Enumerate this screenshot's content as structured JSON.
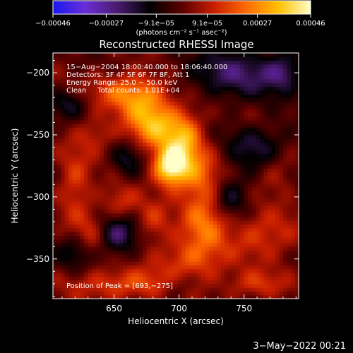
{
  "chart_data": {
    "type": "heatmap",
    "title": "Reconstructed RHESSI Image",
    "xlabel": "Heliocentric X (arcsec)",
    "ylabel": "Heliocentric Y (arcsec)",
    "xlim": [
      603,
      792
    ],
    "ylim": [
      -382,
      -184
    ],
    "x_ticks": [
      650,
      700,
      750
    ],
    "x_tick_labels": [
      "650",
      "700",
      "750"
    ],
    "y_ticks": [
      -200,
      -250,
      -300,
      -350
    ],
    "y_tick_labels": [
      "−200",
      "−250",
      "−300",
      "−350"
    ],
    "colorbar": {
      "range": [
        -0.00046,
        0.00046
      ],
      "ticks": [
        -0.00046,
        -0.00027,
        -9.1e-05,
        9.1e-05,
        0.00027,
        0.00046
      ],
      "tick_labels": [
        "−0.00046",
        "−0.00027",
        "−9.1e−05",
        "9.1e−05",
        "0.00027",
        "0.00046"
      ],
      "units_label": "(photons cm⁻² s⁻¹ asec⁻²)",
      "colors": [
        "#1818f0",
        "#6a2fd6",
        "#4a1a70",
        "#000000",
        "#5a0000",
        "#c81e00",
        "#ff6a00",
        "#ffc000",
        "#ffffc8"
      ]
    },
    "annotations": [
      "15−Aug−2004 18:00:40.000 to 18:06:40.000",
      "Detectors: 3F 4F 5F 6F 7F 8F, Att 1",
      "Energy Range: 25.0 − 50.0 keV",
      "Clean     Total counts: 1.01E+04",
      "Position of Peak = [693,−275]"
    ],
    "peak": {
      "x": 693,
      "y": -275
    },
    "blobs": [
      {
        "x": 693,
        "y": -275,
        "sx": 9,
        "sy": 11,
        "a": 1.0
      },
      {
        "x": 685,
        "y": -245,
        "sx": 16,
        "sy": 12,
        "a": 0.55
      },
      {
        "x": 675,
        "y": -225,
        "sx": 14,
        "sy": 14,
        "a": 0.5
      },
      {
        "x": 655,
        "y": -215,
        "sx": 16,
        "sy": 10,
        "a": 0.4
      },
      {
        "x": 705,
        "y": -255,
        "sx": 9,
        "sy": 16,
        "a": 0.45
      },
      {
        "x": 715,
        "y": -285,
        "sx": 12,
        "sy": 18,
        "a": 0.45
      },
      {
        "x": 720,
        "y": -320,
        "sx": 12,
        "sy": 14,
        "a": 0.42
      },
      {
        "x": 710,
        "y": -350,
        "sx": 18,
        "sy": 13,
        "a": 0.42
      },
      {
        "x": 660,
        "y": -370,
        "sx": 30,
        "sy": 9,
        "a": 0.38
      },
      {
        "x": 620,
        "y": -290,
        "sx": 9,
        "sy": 22,
        "a": 0.32
      },
      {
        "x": 635,
        "y": -330,
        "sx": 10,
        "sy": 14,
        "a": 0.35
      },
      {
        "x": 655,
        "y": -305,
        "sx": 10,
        "sy": 10,
        "a": 0.3
      },
      {
        "x": 680,
        "y": -320,
        "sx": 9,
        "sy": 12,
        "a": 0.28
      },
      {
        "x": 765,
        "y": -330,
        "sx": 20,
        "sy": 14,
        "a": 0.32
      },
      {
        "x": 760,
        "y": -370,
        "sx": 16,
        "sy": 8,
        "a": 0.3
      },
      {
        "x": 775,
        "y": -280,
        "sx": 10,
        "sy": 12,
        "a": 0.22
      },
      {
        "x": 760,
        "y": -240,
        "sx": 12,
        "sy": 10,
        "a": 0.18
      },
      {
        "x": 635,
        "y": -250,
        "sx": 10,
        "sy": 10,
        "a": 0.25
      },
      {
        "x": 745,
        "y": -200,
        "sx": 28,
        "sy": 14,
        "a": -0.45
      },
      {
        "x": 650,
        "y": -330,
        "sx": 12,
        "sy": 12,
        "a": -0.55
      },
      {
        "x": 760,
        "y": -255,
        "sx": 16,
        "sy": 16,
        "a": -0.4
      },
      {
        "x": 780,
        "y": -200,
        "sx": 10,
        "sy": 10,
        "a": -0.35
      },
      {
        "x": 615,
        "y": -225,
        "sx": 10,
        "sy": 8,
        "a": -0.3
      },
      {
        "x": 740,
        "y": -300,
        "sx": 10,
        "sy": 12,
        "a": -0.35
      },
      {
        "x": 660,
        "y": -270,
        "sx": 8,
        "sy": 10,
        "a": -0.3
      },
      {
        "x": 700,
        "y": -370,
        "sx": 10,
        "sy": 8,
        "a": -0.25
      },
      {
        "x": 620,
        "y": -345,
        "sx": 10,
        "sy": 10,
        "a": -0.3
      }
    ]
  },
  "footer": {
    "timestamp": "3−May−2022 00:21"
  }
}
